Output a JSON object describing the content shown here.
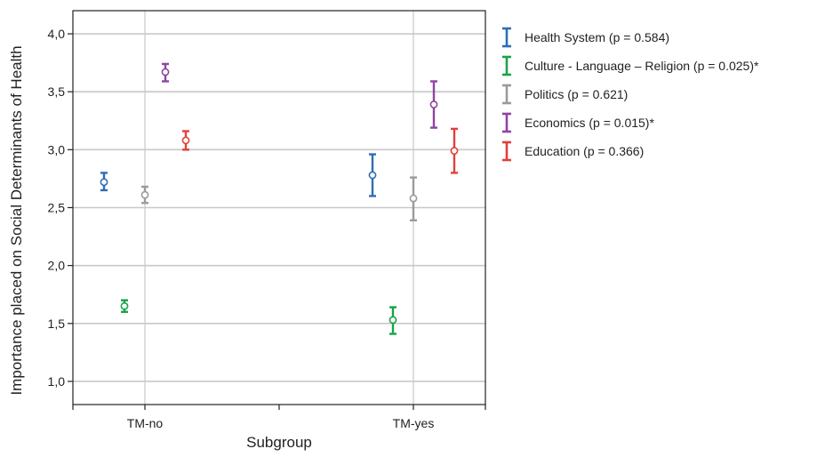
{
  "chart_data": {
    "type": "errorbar",
    "xlabel": "Subgroup",
    "ylabel": "Importance placed on Social Determinants of Health",
    "categories": [
      "TM-no",
      "TM-yes"
    ],
    "ylim": [
      0.8,
      4.2
    ],
    "yticks": [
      "1,0",
      "1,5",
      "2,0",
      "2,5",
      "3,0",
      "3,5",
      "4,0"
    ],
    "ytick_values": [
      1.0,
      1.5,
      2.0,
      2.5,
      3.0,
      3.5,
      4.0
    ],
    "grid": true,
    "legend_position": "right",
    "series": [
      {
        "name": "Health System (p = 0.584)",
        "color": "#2e6db4",
        "means": [
          2.72,
          2.78
        ],
        "lower": [
          2.65,
          2.6
        ],
        "upper": [
          2.8,
          2.96
        ]
      },
      {
        "name": "Culture - Language – Religion (p = 0.025)*",
        "color": "#1aa34a",
        "means": [
          1.65,
          1.53
        ],
        "lower": [
          1.6,
          1.41
        ],
        "upper": [
          1.7,
          1.64
        ]
      },
      {
        "name": "Politics (p = 0.621)",
        "color": "#9b9b9b",
        "means": [
          2.61,
          2.58
        ],
        "lower": [
          2.54,
          2.39
        ],
        "upper": [
          2.68,
          2.76
        ]
      },
      {
        "name": "Economics (p = 0.015)*",
        "color": "#8e44a3",
        "means": [
          3.67,
          3.39
        ],
        "lower": [
          3.59,
          3.19
        ],
        "upper": [
          3.74,
          3.59
        ]
      },
      {
        "name": "Education (p = 0.366)",
        "color": "#e0413a",
        "means": [
          3.08,
          2.99
        ],
        "lower": [
          3.0,
          2.8
        ],
        "upper": [
          3.16,
          3.18
        ]
      }
    ]
  }
}
